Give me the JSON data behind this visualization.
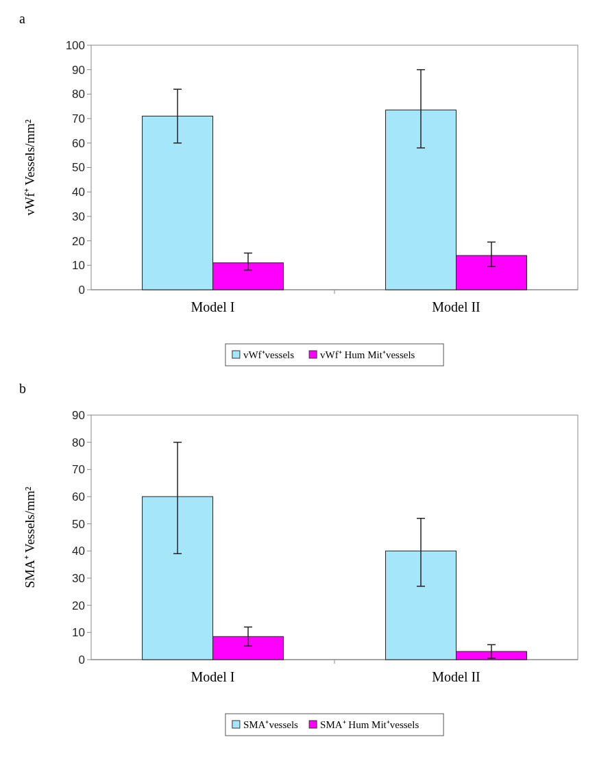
{
  "chart_data": [
    {
      "type": "bar",
      "title": "a",
      "ylabel": "vWf⁺ Vessels/mm²",
      "categories": [
        "Model I",
        "Model II"
      ],
      "ylim": [
        0,
        100
      ],
      "yticks": [
        0,
        10,
        20,
        30,
        40,
        50,
        60,
        70,
        80,
        90,
        100
      ],
      "legend": "bottom",
      "grid": false,
      "series": [
        {
          "name": "vWf⁺vessels",
          "color": "#a6e6fa",
          "values": [
            71,
            73.5
          ],
          "errors": [
            [
              60,
              82
            ],
            [
              58,
              90
            ]
          ]
        },
        {
          "name": "vWf⁺ Hum Mit⁺vessels",
          "color": "#ff00ff",
          "values": [
            11,
            14
          ],
          "errors": [
            [
              8,
              15
            ],
            [
              9.5,
              19.5
            ]
          ]
        }
      ]
    },
    {
      "type": "bar",
      "title": "b",
      "ylabel": "SMA⁺ Vessels/mm²",
      "categories": [
        "Model I",
        "Model II"
      ],
      "ylim": [
        0,
        90
      ],
      "yticks": [
        0,
        10,
        20,
        30,
        40,
        50,
        60,
        70,
        80,
        90
      ],
      "legend": "bottom",
      "grid": false,
      "series": [
        {
          "name": "SMA⁺vessels",
          "color": "#a6e6fa",
          "values": [
            60,
            40
          ],
          "errors": [
            [
              39,
              80
            ],
            [
              27,
              52
            ]
          ]
        },
        {
          "name": "SMA⁺ Hum Mit⁺vessels",
          "color": "#ff00ff",
          "values": [
            8.5,
            3
          ],
          "errors": [
            [
              5,
              12
            ],
            [
              0.5,
              5.5
            ]
          ]
        }
      ]
    }
  ]
}
